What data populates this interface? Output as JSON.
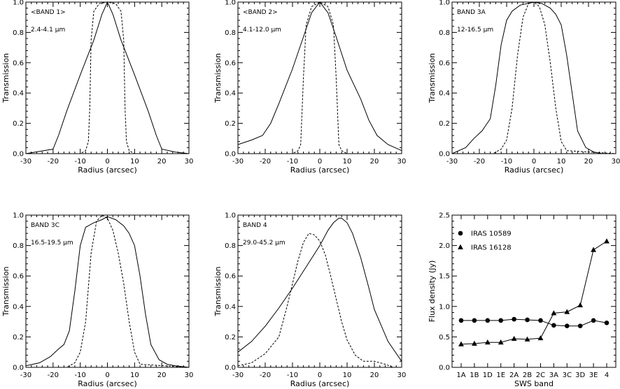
{
  "chart_data": [
    {
      "type": "line",
      "panel_label": "<BAND 1>",
      "wavelength_label": "2.4-4.1 μm",
      "xlabel": "Radius (arcsec)",
      "ylabel": "Transmission",
      "xlim": [
        -30,
        30
      ],
      "ylim": [
        0.0,
        1.0
      ],
      "xticks": [
        -30,
        -20,
        -10,
        0,
        10,
        20,
        30
      ],
      "yticks": [
        0.0,
        0.2,
        0.4,
        0.6,
        0.8,
        1.0
      ],
      "series": [
        {
          "style": "solid",
          "x": [
            -30,
            -20,
            -18,
            -15,
            -10,
            -5,
            -2,
            0,
            2,
            5,
            10,
            15,
            18,
            20,
            25,
            30
          ],
          "y": [
            0.0,
            0.03,
            0.12,
            0.28,
            0.52,
            0.75,
            0.92,
            1.0,
            0.92,
            0.75,
            0.52,
            0.28,
            0.12,
            0.03,
            0.01,
            0.0
          ]
        },
        {
          "style": "dashed",
          "x": [
            -30,
            -10,
            -8,
            -7,
            -6.5,
            -6,
            -5,
            -3,
            0,
            3,
            5,
            6,
            6.5,
            7,
            8,
            10,
            30
          ],
          "y": [
            0.0,
            0.0,
            0.02,
            0.08,
            0.3,
            0.75,
            0.94,
            0.99,
            1.0,
            0.99,
            0.94,
            0.75,
            0.3,
            0.08,
            0.02,
            0.0,
            0.0
          ]
        }
      ]
    },
    {
      "type": "line",
      "panel_label": "<BAND 2>",
      "wavelength_label": "4.1-12.0 μm",
      "xlabel": "Radius (arcsec)",
      "ylabel": "Transmission",
      "xlim": [
        -30,
        30
      ],
      "ylim": [
        0.0,
        1.0
      ],
      "xticks": [
        -30,
        -20,
        -10,
        0,
        10,
        20,
        30
      ],
      "yticks": [
        0.0,
        0.2,
        0.4,
        0.6,
        0.8,
        1.0
      ],
      "series": [
        {
          "style": "solid",
          "x": [
            -30,
            -25,
            -21,
            -18,
            -15,
            -10,
            -6,
            -3,
            0,
            3,
            6,
            10,
            15,
            18,
            21,
            25,
            30
          ],
          "y": [
            0.06,
            0.09,
            0.12,
            0.2,
            0.33,
            0.56,
            0.77,
            0.93,
            1.0,
            0.93,
            0.77,
            0.55,
            0.36,
            0.22,
            0.12,
            0.06,
            0.02
          ]
        },
        {
          "style": "dashed",
          "x": [
            -30,
            -10,
            -8,
            -7,
            -6,
            -5,
            -3,
            0,
            3,
            5,
            6,
            7,
            8,
            10,
            30
          ],
          "y": [
            0.0,
            0.0,
            0.02,
            0.06,
            0.5,
            0.85,
            0.97,
            1.0,
            0.97,
            0.85,
            0.5,
            0.06,
            0.02,
            0.0,
            0.0
          ]
        }
      ]
    },
    {
      "type": "line",
      "panel_label": "BAND 3A",
      "wavelength_label": "12-16.5 μm",
      "xlabel": "Radius (arcsec)",
      "ylabel": "Transmission",
      "xlim": [
        -30,
        30
      ],
      "ylim": [
        0.0,
        1.0
      ],
      "xticks": [
        -30,
        -20,
        -10,
        0,
        10,
        20,
        30
      ],
      "yticks": [
        0.0,
        0.2,
        0.4,
        0.6,
        0.8,
        1.0
      ],
      "series": [
        {
          "style": "solid",
          "x": [
            -30,
            -25,
            -22,
            -19,
            -16,
            -14,
            -12,
            -10,
            -8,
            -5,
            0,
            3,
            6,
            8,
            10,
            12,
            14,
            16,
            19,
            22,
            25,
            30
          ],
          "y": [
            0.0,
            0.04,
            0.1,
            0.15,
            0.23,
            0.45,
            0.72,
            0.88,
            0.94,
            0.98,
            1.0,
            0.99,
            0.96,
            0.92,
            0.85,
            0.65,
            0.4,
            0.15,
            0.04,
            0.01,
            0.0,
            0.0
          ]
        },
        {
          "style": "dashed",
          "x": [
            -30,
            -15,
            -12,
            -10,
            -8,
            -6,
            -4,
            -2,
            0,
            2,
            4,
            6,
            8,
            10,
            12,
            30
          ],
          "y": [
            0.0,
            0.0,
            0.03,
            0.09,
            0.3,
            0.65,
            0.9,
            0.99,
            1.0,
            0.97,
            0.85,
            0.6,
            0.3,
            0.08,
            0.02,
            0.0
          ]
        }
      ]
    },
    {
      "type": "line",
      "panel_label": "BAND 3C",
      "wavelength_label": "16.5-19.5 μm",
      "xlabel": "Radius (arcsec)",
      "ylabel": "Transmission",
      "xlim": [
        -30,
        30
      ],
      "ylim": [
        0.0,
        1.0
      ],
      "xticks": [
        -30,
        -20,
        -10,
        0,
        10,
        20,
        30
      ],
      "yticks": [
        0.0,
        0.2,
        0.4,
        0.6,
        0.8,
        1.0
      ],
      "series": [
        {
          "style": "solid",
          "x": [
            -30,
            -25,
            -21,
            -18,
            -16,
            -14,
            -12,
            -10,
            -8,
            -5,
            -2,
            0,
            3,
            6,
            8,
            10,
            12,
            14,
            16,
            19,
            22,
            25,
            30
          ],
          "y": [
            0.01,
            0.03,
            0.07,
            0.12,
            0.15,
            0.24,
            0.5,
            0.8,
            0.92,
            0.95,
            0.97,
            0.99,
            0.97,
            0.93,
            0.88,
            0.8,
            0.6,
            0.35,
            0.15,
            0.05,
            0.02,
            0.01,
            0.0
          ]
        },
        {
          "style": "dashed",
          "x": [
            -30,
            -15,
            -12,
            -10,
            -8,
            -6,
            -4,
            -2,
            0,
            2,
            4,
            6,
            8,
            10,
            12,
            30
          ],
          "y": [
            0.0,
            0.0,
            0.03,
            0.1,
            0.3,
            0.75,
            0.96,
            1.0,
            0.98,
            0.9,
            0.75,
            0.55,
            0.3,
            0.1,
            0.02,
            0.0
          ]
        }
      ]
    },
    {
      "type": "line",
      "panel_label": "BAND 4",
      "wavelength_label": "29.0-45.2 μm",
      "xlabel": "Radius (arcsec)",
      "ylabel": "Transmission",
      "xlim": [
        -30,
        30
      ],
      "ylim": [
        0.0,
        1.0
      ],
      "xticks": [
        -30,
        -20,
        -10,
        0,
        10,
        20,
        30
      ],
      "yticks": [
        0.0,
        0.2,
        0.4,
        0.6,
        0.8,
        1.0
      ],
      "series": [
        {
          "style": "solid",
          "x": [
            -30,
            -25,
            -20,
            -15,
            -10,
            -5,
            0,
            3,
            5,
            7,
            8,
            10,
            12,
            15,
            18,
            20,
            25,
            30
          ],
          "y": [
            0.1,
            0.17,
            0.27,
            0.39,
            0.52,
            0.66,
            0.8,
            0.9,
            0.95,
            0.98,
            0.98,
            0.95,
            0.88,
            0.72,
            0.52,
            0.38,
            0.17,
            0.04
          ]
        },
        {
          "style": "dashed",
          "x": [
            -30,
            -25,
            -20,
            -15,
            -12,
            -10,
            -8,
            -6,
            -4,
            -2,
            0,
            2,
            4,
            6,
            8,
            10,
            13,
            16,
            20,
            24,
            27,
            30
          ],
          "y": [
            0.01,
            0.03,
            0.09,
            0.2,
            0.4,
            0.55,
            0.7,
            0.82,
            0.88,
            0.87,
            0.83,
            0.74,
            0.6,
            0.45,
            0.3,
            0.18,
            0.08,
            0.04,
            0.04,
            0.02,
            0.0,
            0.0
          ]
        }
      ]
    },
    {
      "type": "line",
      "xlabel": "SWS band",
      "ylabel": "Flux density (Jy)",
      "ylim": [
        0.0,
        2.5
      ],
      "yticks": [
        0.0,
        0.5,
        1.0,
        1.5,
        2.0,
        2.5
      ],
      "categories": [
        "1A",
        "1B",
        "1D",
        "1E",
        "2A",
        "2B",
        "2C",
        "3A",
        "3C",
        "3D",
        "3E",
        "4"
      ],
      "legend_position": "top-left",
      "series": [
        {
          "name": "IRAS 10589",
          "marker": "circle",
          "values": [
            0.77,
            0.77,
            0.77,
            0.77,
            0.79,
            0.78,
            0.77,
            0.69,
            0.68,
            0.68,
            0.77,
            0.73
          ]
        },
        {
          "name": "IRAS 16128",
          "marker": "triangle",
          "values": [
            0.38,
            0.39,
            0.41,
            0.41,
            0.47,
            0.46,
            0.48,
            0.89,
            0.91,
            1.02,
            1.93,
            2.07
          ]
        }
      ]
    }
  ]
}
